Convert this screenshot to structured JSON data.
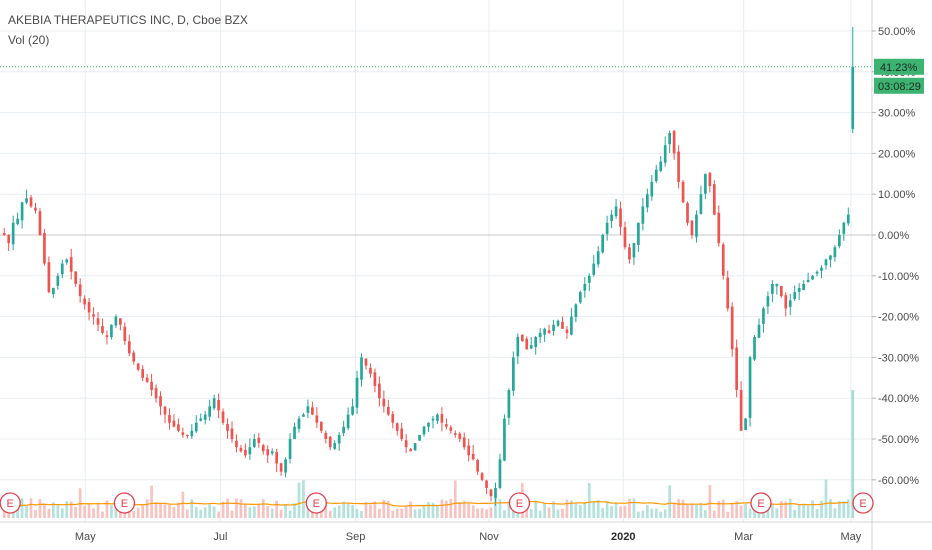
{
  "legend": {
    "title": "AKEBIA THERAPEUTICS INC, D, Cboe BZX",
    "indicator": "Vol (20)"
  },
  "price_tag": "41.23%",
  "countdown_tag": "03:08:29",
  "earnings_marker": "E",
  "colors": {
    "up": "#26a69a",
    "down": "#ef5350",
    "volume_ma": "#ff9800",
    "grid": "#e8eef2",
    "axis_text": "#4a4a4a",
    "tag_bg": "#3cb371",
    "zero_line": "#c8c8c8"
  },
  "chart_data": {
    "type": "candlestick",
    "title": "AKEBIA THERAPEUTICS INC, D, Cboe BZX",
    "y_axis": {
      "unit": "%",
      "range": [
        -68,
        54
      ],
      "ticks": [
        "50.00%",
        "40.00%",
        "30.00%",
        "20.00%",
        "10.00%",
        "0.00%",
        "-10.00%",
        "-20.00%",
        "-30.00%",
        "-40.00%",
        "-50.00%",
        "-60.00%"
      ],
      "tick_values": [
        50,
        40,
        30,
        20,
        10,
        0,
        -10,
        -20,
        -30,
        -40,
        -50,
        -60
      ]
    },
    "x_axis": {
      "ticks": [
        "May",
        "Jul",
        "Sep",
        "Nov",
        "2020",
        "Mar",
        "May"
      ],
      "tick_positions": [
        0.115,
        0.27,
        0.425,
        0.578,
        0.732,
        0.87,
        0.993
      ]
    },
    "last_value": 41.23,
    "earnings_positions": [
      0.014,
      0.145,
      0.365,
      0.598,
      0.875,
      0.992
    ],
    "daily_closes": [
      0,
      -2,
      3,
      4,
      8,
      9,
      7,
      6,
      0,
      -7,
      -14,
      -13,
      -10,
      -7,
      -6,
      -9,
      -12,
      -15,
      -17,
      -19,
      -20,
      -22,
      -24,
      -25,
      -22,
      -20,
      -22,
      -26,
      -29,
      -31,
      -33,
      -35,
      -36,
      -38,
      -40,
      -42,
      -44,
      -46,
      -47,
      -48,
      -49,
      -49,
      -48,
      -46,
      -45,
      -44,
      -42,
      -40,
      -43,
      -46,
      -48,
      -50,
      -52,
      -53,
      -54,
      -52,
      -50,
      -51,
      -53,
      -54,
      -53,
      -56,
      -58,
      -55,
      -50,
      -47,
      -45,
      -44,
      -42,
      -44,
      -46,
      -48,
      -50,
      -52,
      -51,
      -49,
      -47,
      -44,
      -42,
      -35,
      -30,
      -32,
      -34,
      -37,
      -40,
      -42,
      -44,
      -46,
      -48,
      -50,
      -52,
      -53,
      -51,
      -49,
      -47,
      -46,
      -45,
      -44,
      -46,
      -47,
      -48,
      -49,
      -50,
      -52,
      -54,
      -55,
      -58,
      -60,
      -62,
      -64,
      -62,
      -55,
      -45,
      -38,
      -30,
      -25,
      -26,
      -28,
      -27,
      -25,
      -24,
      -23,
      -24,
      -22,
      -21,
      -23,
      -24,
      -20,
      -17,
      -14,
      -12,
      -10,
      -7,
      -4,
      0,
      3,
      5,
      7,
      2,
      -3,
      -6,
      -2,
      3,
      7,
      10,
      13,
      16,
      18,
      22,
      25,
      20,
      13,
      8,
      3,
      0,
      5,
      10,
      15,
      12,
      5,
      -2,
      -10,
      -18,
      -28,
      -38,
      -48,
      -45,
      -30,
      -25,
      -22,
      -18,
      -15,
      -12,
      -12,
      -15,
      -18,
      -16,
      -14,
      -13,
      -12,
      -11,
      -10,
      -9,
      -8,
      -6,
      -5,
      -3,
      0,
      3,
      5
    ],
    "last_bar": {
      "open": 26,
      "high": 51,
      "low": 25,
      "close": 41.23
    }
  }
}
